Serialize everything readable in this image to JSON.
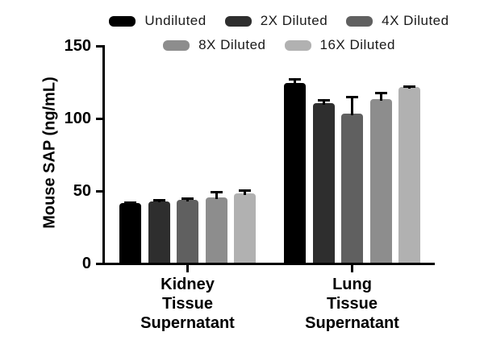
{
  "chart_data": {
    "type": "bar",
    "title": "",
    "ylabel": "Mouse SAP (ng/mL)",
    "xlabel": "",
    "ylim": [
      0,
      150
    ],
    "yticks": [
      0,
      50,
      100,
      150
    ],
    "grid": false,
    "legend_position": "top",
    "axis_color": "#000000",
    "background_color": "#ffffff",
    "categories": [
      [
        "Kidney",
        "Tissue",
        "Supernatant"
      ],
      [
        "Lung",
        "Tissue",
        "Supernatant"
      ]
    ],
    "series": [
      {
        "name": "Undiluted",
        "color": "#000000",
        "values": [
          41,
          124
        ],
        "errors": [
          1,
          3
        ]
      },
      {
        "name": "2X Diluted",
        "color": "#2e2e2e",
        "values": [
          42.5,
          110
        ],
        "errors": [
          1.5,
          3
        ]
      },
      {
        "name": "4X Diluted",
        "color": "#606060",
        "values": [
          43.5,
          103
        ],
        "errors": [
          1.5,
          12
        ]
      },
      {
        "name": "8X Diluted",
        "color": "#8d8d8d",
        "values": [
          45,
          113
        ],
        "errors": [
          4.5,
          5
        ]
      },
      {
        "name": "16X Diluted",
        "color": "#b1b1b1",
        "values": [
          48,
          121
        ],
        "errors": [
          2.5,
          1
        ]
      }
    ]
  }
}
